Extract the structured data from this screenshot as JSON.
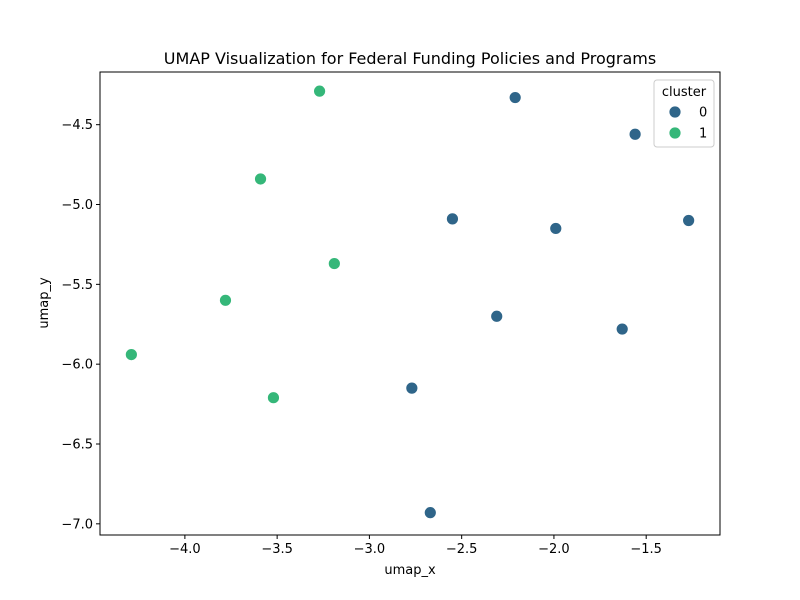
{
  "chart_data": {
    "type": "scatter",
    "title": "UMAP Visualization for Federal Funding Policies and Programs",
    "xlabel": "umap_x",
    "ylabel": "umap_y",
    "xlim": [
      -4.46,
      -1.1
    ],
    "ylim": [
      -7.07,
      -4.17
    ],
    "xticks": [
      -4.0,
      -3.5,
      -3.0,
      -2.5,
      -2.0,
      -1.5
    ],
    "xtick_labels": [
      "−4.0",
      "−3.5",
      "−3.0",
      "−2.5",
      "−2.0",
      "−1.5"
    ],
    "yticks": [
      -7.0,
      -6.5,
      -6.0,
      -5.5,
      -5.0,
      -4.5
    ],
    "ytick_labels": [
      "−7.0",
      "−6.5",
      "−6.0",
      "−5.5",
      "−5.0",
      "−4.5"
    ],
    "grid": false,
    "legend": {
      "title": "cluster",
      "placement": "top-right"
    },
    "series": [
      {
        "name": "0",
        "color": "#2f6589",
        "points": [
          {
            "x": -2.21,
            "y": -4.33
          },
          {
            "x": -1.56,
            "y": -4.56
          },
          {
            "x": -2.55,
            "y": -5.09
          },
          {
            "x": -1.99,
            "y": -5.15
          },
          {
            "x": -1.27,
            "y": -5.1
          },
          {
            "x": -2.31,
            "y": -5.7
          },
          {
            "x": -1.63,
            "y": -5.78
          },
          {
            "x": -2.77,
            "y": -6.15
          },
          {
            "x": -2.67,
            "y": -6.93
          }
        ]
      },
      {
        "name": "1",
        "color": "#35b779",
        "points": [
          {
            "x": -3.27,
            "y": -4.29
          },
          {
            "x": -3.59,
            "y": -4.84
          },
          {
            "x": -3.19,
            "y": -5.37
          },
          {
            "x": -3.78,
            "y": -5.6
          },
          {
            "x": -4.29,
            "y": -5.94
          },
          {
            "x": -3.52,
            "y": -6.21
          }
        ]
      }
    ]
  }
}
